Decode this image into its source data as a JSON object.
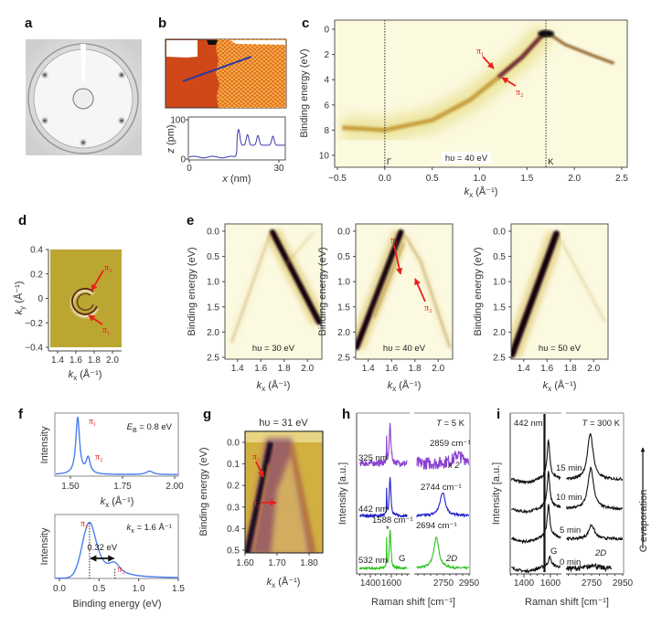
{
  "panels": {
    "a": "a",
    "b": "b",
    "c": "c",
    "d": "d",
    "e": "e",
    "f": "f",
    "g": "g",
    "h": "h",
    "i": "i"
  },
  "colors": {
    "arrow": "#e8201a",
    "profile": "#3a3ab0",
    "spectrum_blue": "#4a7ef0",
    "raman_325": "#8a3fd0",
    "raman_442": "#2020c8",
    "raman_532": "#30c020",
    "raman_black": "#111111"
  },
  "chart_data": [
    {
      "id": "b-profile",
      "type": "line",
      "xlabel": {
        "main": "x",
        "unit": " (nm)"
      },
      "ylabel": {
        "main": "z",
        "unit": " (pm)"
      },
      "xlim": [
        0,
        32
      ],
      "ylim": [
        0,
        100
      ],
      "xticks": [
        0,
        30
      ],
      "xtick_labels": [
        "0",
        "30"
      ],
      "yticks": [
        0,
        100
      ],
      "ytick_labels": [
        "0",
        "100"
      ],
      "baseline_low": 5,
      "baseline_high": 35,
      "step_x": 16,
      "peaks": [
        [
          16.5,
          75
        ],
        [
          19.5,
          62
        ],
        [
          23,
          60
        ],
        [
          28,
          58
        ]
      ]
    },
    {
      "id": "c",
      "type": "heatmap",
      "xlabel": {
        "main": "k",
        "sub": "x",
        "unit": " (Å⁻¹)"
      },
      "ylabel": "Binding energy (eV)",
      "xlim": [
        -0.5,
        2.5
      ],
      "ylim": [
        0,
        11
      ],
      "xticks": [
        -0.5,
        0,
        0.5,
        1,
        1.5,
        2,
        2.5
      ],
      "xtick_labels": [
        "−0.5",
        "0.0",
        "0.5",
        "1.0",
        "1.5",
        "2.0",
        "2.5"
      ],
      "yticks": [
        0,
        2,
        4,
        6,
        8,
        10
      ],
      "ytick_labels": [
        "0",
        "2",
        "4",
        "6",
        "8",
        "10"
      ],
      "markers": [
        {
          "k": 0,
          "label": "Γ"
        },
        {
          "k": 1.7,
          "label": "K"
        }
      ],
      "photon_energy": "hυ = 40 eV",
      "bands": [
        [
          [
            -0.45,
            7.8
          ],
          [
            0,
            8.0
          ],
          [
            0.5,
            7.2
          ],
          [
            0.9,
            5.6
          ],
          [
            1.2,
            3.8
          ],
          [
            1.45,
            2.2
          ],
          [
            1.62,
            0.8
          ],
          [
            1.7,
            0.2
          ]
        ],
        [
          [
            1.72,
            0.3
          ],
          [
            1.9,
            1.2
          ],
          [
            2.2,
            2.1
          ],
          [
            2.42,
            2.7
          ]
        ]
      ],
      "annotations": [
        {
          "text": "π₁",
          "k": 1.2,
          "E": 3.4
        },
        {
          "text": "π₂",
          "k": 1.25,
          "E": 4.0
        }
      ]
    },
    {
      "id": "d",
      "type": "heatmap",
      "xlabel": {
        "main": "k",
        "sub": "x",
        "unit": " (Å⁻¹)"
      },
      "ylabel": {
        "main": "k",
        "sub": "y",
        "unit": " (Å⁻¹)"
      },
      "xlim": [
        1.3,
        2.1
      ],
      "ylim": [
        -0.4,
        0.4
      ],
      "xticks": [
        1.4,
        1.6,
        1.8,
        2.0
      ],
      "xtick_labels": [
        "1.4",
        "1.6",
        "1.8",
        "2.0"
      ],
      "yticks": [
        -0.4,
        -0.2,
        0,
        0.2,
        0.4
      ],
      "ytick_labels": [
        "−0.4",
        "−0.2",
        "0",
        "0.2",
        "0.4"
      ],
      "annotations": [
        {
          "text": "π₂"
        },
        {
          "text": "π₁"
        }
      ]
    },
    {
      "id": "e1",
      "type": "heatmap",
      "xlabel": {
        "main": "k",
        "sub": "x",
        "unit": " (Å⁻¹)"
      },
      "ylabel": "Binding energy (eV)",
      "xlim": [
        1.3,
        2.1
      ],
      "ylim": [
        0,
        2.5
      ],
      "xticks": [
        1.4,
        1.6,
        1.8,
        2.0
      ],
      "xtick_labels": [
        "1.4",
        "1.6",
        "1.8",
        "2.0"
      ],
      "yticks": [
        0,
        0.5,
        1,
        1.5,
        2,
        2.5
      ],
      "ytick_labels": [
        "0.0",
        "0.5",
        "1.0",
        "1.5",
        "2.0",
        "2.5"
      ],
      "photon_energy": "hυ = 30 eV",
      "bands": [
        {
          "w": 9,
          "o": 1,
          "p": [
            [
              1.7,
              0.02
            ],
            [
              2.1,
              1.8
            ]
          ]
        },
        {
          "w": 3,
          "o": 0.35,
          "p": [
            [
              1.68,
              0.05
            ],
            [
              1.35,
              2.2
            ]
          ]
        },
        {
          "w": 2,
          "o": 0.3,
          "p": [
            [
              2.05,
              0.03
            ],
            [
              1.8,
              0.7
            ]
          ]
        }
      ]
    },
    {
      "id": "e2",
      "type": "heatmap",
      "xlabel": {
        "main": "k",
        "sub": "x",
        "unit": " (Å⁻¹)"
      },
      "ylabel": "Binding energy (eV)",
      "xlim": [
        1.3,
        2.1
      ],
      "ylim": [
        0,
        2.5
      ],
      "xticks": [
        1.4,
        1.6,
        1.8,
        2.0
      ],
      "xtick_labels": [
        "1.4",
        "1.6",
        "1.8",
        "2.0"
      ],
      "yticks": [
        0,
        0.5,
        1,
        1.5,
        2,
        2.5
      ],
      "ytick_labels": [
        "0.0",
        "0.5",
        "1.0",
        "1.5",
        "2.0",
        "2.5"
      ],
      "photon_energy": "hυ = 40 eV",
      "bands": [
        {
          "w": 9,
          "o": 1,
          "p": [
            [
              1.68,
              0.02
            ],
            [
              1.3,
              2.3
            ]
          ]
        },
        {
          "w": 3,
          "o": 0.5,
          "p": [
            [
              1.72,
              0.1
            ],
            [
              1.85,
              0.6
            ],
            [
              2.1,
              2.3
            ]
          ]
        },
        {
          "w": 3,
          "o": 0.6,
          "p": [
            [
              1.7,
              0.25
            ],
            [
              1.45,
              1.7
            ]
          ]
        }
      ],
      "annotations": [
        {
          "text": "π₁"
        },
        {
          "text": "π₂"
        }
      ]
    },
    {
      "id": "e3",
      "type": "heatmap",
      "xlabel": {
        "main": "k",
        "sub": "x",
        "unit": " (Å⁻¹)"
      },
      "ylabel": "Binding energy (eV)",
      "xlim": [
        1.3,
        2.1
      ],
      "ylim": [
        0,
        2.5
      ],
      "xticks": [
        1.4,
        1.6,
        1.8,
        2.0
      ],
      "xtick_labels": [
        "1.4",
        "1.6",
        "1.8",
        "2.0"
      ],
      "yticks": [
        0,
        0.5,
        1,
        1.5,
        2,
        2.5
      ],
      "ytick_labels": [
        "0.0",
        "0.5",
        "1.0",
        "1.5",
        "2.0",
        "2.5"
      ],
      "photon_energy": "hυ = 50 eV",
      "bands": [
        {
          "w": 10,
          "o": 1,
          "p": [
            [
              1.68,
              0.05
            ],
            [
              1.3,
              2.45
            ]
          ]
        },
        {
          "w": 2,
          "o": 0.3,
          "p": [
            [
              1.7,
              0.1
            ],
            [
              2.1,
              1.8
            ]
          ]
        }
      ]
    },
    {
      "id": "f-top",
      "type": "line",
      "xlabel": {
        "main": "k",
        "sub": "x",
        "unit": " (Å⁻¹)"
      },
      "ylabel": "Intensity",
      "xlim": [
        1.425,
        2.017
      ],
      "xticks": [
        1.5,
        1.75,
        2.0
      ],
      "xtick_labels": [
        "1.50",
        "1.75",
        "2.00"
      ],
      "condition": {
        "main": "E",
        "sub": "B",
        "unit": " = 0.8 eV"
      },
      "peaks": [
        [
          1.535,
          1.0,
          0.011
        ],
        [
          1.585,
          0.28,
          0.012
        ],
        [
          1.88,
          0.06,
          0.02
        ]
      ],
      "annotations": [
        "π₁",
        "π₂"
      ]
    },
    {
      "id": "f-bottom",
      "type": "line",
      "xlabel": "Binding energy (eV)",
      "ylabel": "Intensity",
      "xlim": [
        -0.06,
        1.5
      ],
      "xticks": [
        0,
        0.5,
        1,
        1.5
      ],
      "xtick_labels": [
        "0.0",
        "0.5",
        "1.0",
        "1.5"
      ],
      "condition": {
        "main": "k",
        "sub": "x",
        "unit": " = 1.6 Å⁻¹"
      },
      "peaks": [
        [
          0.38,
          1.0,
          0.13
        ],
        [
          0.7,
          0.17,
          0.09
        ]
      ],
      "splitting": "0.32 eV",
      "annotations": [
        "π₁",
        "π₂"
      ]
    },
    {
      "id": "g",
      "type": "heatmap",
      "title": "hυ = 31 eV",
      "xlabel": {
        "main": "k",
        "sub": "x",
        "unit": " (Å⁻¹)"
      },
      "ylabel": "Binding energy (eV)",
      "xlim": [
        1.6,
        1.82
      ],
      "ylim": [
        0,
        0.5
      ],
      "xticks": [
        1.6,
        1.7,
        1.8
      ],
      "xtick_labels": [
        "1.60",
        "1.70",
        "1.80"
      ],
      "yticks": [
        0,
        0.1,
        0.2,
        0.3,
        0.4,
        0.5
      ],
      "ytick_labels": [
        "0.0",
        "0.1",
        "0.2",
        "0.3",
        "0.4",
        "0.5"
      ],
      "annotations": [
        "π₁",
        "π₂"
      ]
    },
    {
      "id": "h",
      "type": "line",
      "xlabel": "Raman shift [cm⁻¹]",
      "ylabel": "Intensity [a.u.]",
      "xticks": [
        1400,
        1600,
        2750,
        2950
      ],
      "xtick_labels": [
        "1400",
        "1600",
        "2750",
        "2950"
      ],
      "condition": {
        "main": "T",
        "unit": " = 5 K"
      },
      "traces": [
        {
          "label": "532 nm",
          "offset": 0,
          "color": "#30c020",
          "G": [
            1588,
            0.72
          ],
          "D2": [
            2694,
            0.58
          ],
          "line1555": 0.55,
          "noise": 0.02
        },
        {
          "label": "442 nm",
          "offset": 1,
          "color": "#2020c8",
          "G": [
            1588,
            0.75
          ],
          "D2": [
            2744,
            0.45
          ],
          "line1555": 0.5,
          "noise": 0.025
        },
        {
          "label": "325 nm",
          "offset": 2,
          "color": "#8a3fd0",
          "G": [
            1588,
            0.75
          ],
          "D2": [
            2859,
            0.12
          ],
          "line1555": 0.45,
          "noise": 0.06
        }
      ],
      "annotations": {
        "d2_325": "2859 cm⁻¹",
        "scale_325": "x 2",
        "d2_442": "2744 cm⁻¹",
        "g_532": "1588 cm⁻¹",
        "d2_532": "2694 cm⁻¹",
        "star": "*",
        "g": "G",
        "d2": "2D"
      }
    },
    {
      "id": "i",
      "type": "line",
      "xlabel": "Raman shift [cm⁻¹]",
      "ylabel": "Intensity [a.u.]",
      "xticks": [
        1400,
        1600,
        2750,
        2950
      ],
      "xtick_labels": [
        "1400",
        "1600",
        "2750",
        "2950"
      ],
      "condition": {
        "main": "T",
        "unit": " = 300 K"
      },
      "laser": "442 nm",
      "side_label": "C evaporation",
      "traces": [
        {
          "label": "0 min",
          "offset": 0,
          "G": [
            1595,
            0.17
          ],
          "D2": [
            2760,
            0.08
          ]
        },
        {
          "label": "5 min",
          "offset": 0.56,
          "G": [
            1585,
            0.6
          ],
          "D2": [
            2750,
            0.27
          ]
        },
        {
          "label": "10 min",
          "offset": 1.13,
          "G": [
            1585,
            0.66
          ],
          "D2": [
            2745,
            0.78
          ]
        },
        {
          "label": "15 min",
          "offset": 1.69,
          "G": [
            1585,
            0.7
          ],
          "D2": [
            2742,
            0.88
          ]
        }
      ],
      "annotations": {
        "g": "G",
        "d2": "2D"
      }
    }
  ]
}
